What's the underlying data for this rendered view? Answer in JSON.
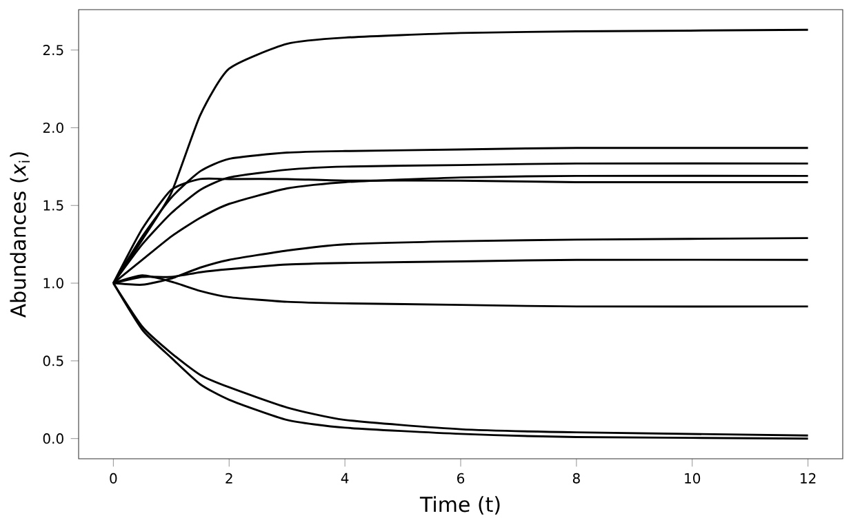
{
  "chart_data": {
    "type": "line",
    "xlabel": "Time (t)",
    "ylabel": "Abundances (*x*$_{i}$)",
    "x": [
      0,
      0.5,
      1,
      1.5,
      2,
      3,
      4,
      6,
      8,
      12
    ],
    "xlim": [
      -0.6,
      12.6
    ],
    "xticks": [
      0,
      2,
      4,
      6,
      8,
      10,
      12
    ],
    "ylim": [
      -0.13,
      2.76
    ],
    "yticks": [
      {
        "value": 0,
        "label": "0.0"
      },
      0.5,
      {
        "value": 1,
        "label": "1.0"
      },
      1.5,
      {
        "value": 2,
        "label": "2.0"
      },
      2.5
    ],
    "grid": false,
    "marker": "none",
    "line_style": "solid",
    "series": [
      {
        "color": "#000000",
        "values": [
          1,
          1.28,
          1.58,
          2.08,
          2.38,
          2.54,
          2.58,
          2.61,
          2.62,
          2.63
        ]
      },
      {
        "color": "#000000",
        "values": [
          1,
          1.3,
          1.55,
          1.72,
          1.8,
          1.84,
          1.85,
          1.86,
          1.87,
          1.87
        ]
      },
      {
        "color": "#000000",
        "values": [
          1,
          1.25,
          1.45,
          1.6,
          1.68,
          1.73,
          1.75,
          1.76,
          1.77,
          1.77
        ]
      },
      {
        "color": "#000000",
        "values": [
          1,
          1.35,
          1.6,
          1.67,
          1.67,
          1.67,
          1.66,
          1.66,
          1.65,
          1.65
        ]
      },
      {
        "color": "#000000",
        "values": [
          1,
          1.15,
          1.3,
          1.42,
          1.51,
          1.61,
          1.65,
          1.68,
          1.69,
          1.69
        ]
      },
      {
        "color": "#000000",
        "values": [
          1,
          0.99,
          1.03,
          1.1,
          1.15,
          1.21,
          1.25,
          1.27,
          1.28,
          1.29
        ]
      },
      {
        "color": "#000000",
        "values": [
          1,
          1.04,
          1.04,
          1.07,
          1.09,
          1.12,
          1.13,
          1.14,
          1.15,
          1.15
        ]
      },
      {
        "color": "#000000",
        "values": [
          1,
          1.05,
          1.01,
          0.95,
          0.91,
          0.88,
          0.87,
          0.86,
          0.85,
          0.85
        ]
      },
      {
        "color": "#000000",
        "values": [
          1,
          0.72,
          0.55,
          0.41,
          0.33,
          0.2,
          0.12,
          0.06,
          0.04,
          0.02
        ]
      },
      {
        "color": "#000000",
        "values": [
          1,
          0.7,
          0.52,
          0.35,
          0.25,
          0.12,
          0.07,
          0.03,
          0.01,
          0.0
        ]
      }
    ]
  }
}
